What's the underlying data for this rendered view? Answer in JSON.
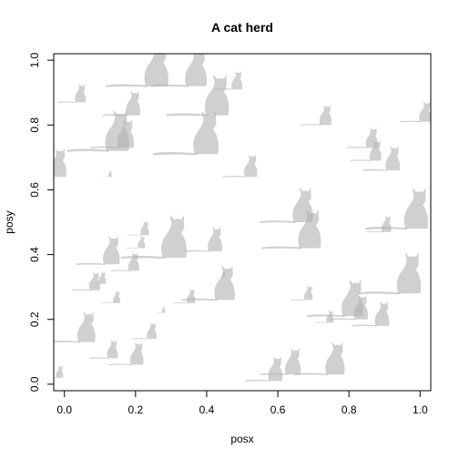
{
  "chart_data": {
    "type": "scatter",
    "title": "A cat herd",
    "xlabel": "posx",
    "ylabel": "posy",
    "xlim": [
      -0.03,
      1.03
    ],
    "ylim": [
      -0.02,
      1.02
    ],
    "xticks": [
      0.0,
      0.2,
      0.4,
      0.6,
      0.8,
      1.0
    ],
    "xtick_labels": [
      "0.0",
      "0.2",
      "0.4",
      "0.6",
      "0.8",
      "1.0"
    ],
    "yticks": [
      0.0,
      0.2,
      0.4,
      0.6,
      0.8,
      1.0
    ],
    "ytick_labels": [
      "0.0",
      "0.2",
      "0.4",
      "0.6",
      "0.8",
      "1.0"
    ],
    "grid": false,
    "marker": "cat-silhouette",
    "marker_color": "#b0b0b0",
    "marker_opacity": 0.6,
    "points": [
      {
        "x": 0.27,
        "y": 0.92,
        "size": 1.0
      },
      {
        "x": 0.38,
        "y": 0.92,
        "size": 0.9
      },
      {
        "x": 0.05,
        "y": 0.87,
        "size": 0.45
      },
      {
        "x": 0.2,
        "y": 0.83,
        "size": 0.6
      },
      {
        "x": 0.44,
        "y": 0.83,
        "size": 1.0
      },
      {
        "x": 0.49,
        "y": 0.91,
        "size": 0.45
      },
      {
        "x": 0.74,
        "y": 0.8,
        "size": 0.5
      },
      {
        "x": 1.02,
        "y": 0.81,
        "size": 0.5
      },
      {
        "x": 0.16,
        "y": 0.72,
        "size": 1.0
      },
      {
        "x": 0.41,
        "y": 0.71,
        "size": 1.05
      },
      {
        "x": 0.18,
        "y": 0.73,
        "size": 0.7
      },
      {
        "x": 0.87,
        "y": 0.73,
        "size": 0.5
      },
      {
        "x": 0.88,
        "y": 0.69,
        "size": 0.5
      },
      {
        "x": 0.93,
        "y": 0.66,
        "size": 0.6
      },
      {
        "x": -0.01,
        "y": 0.64,
        "size": 0.7
      },
      {
        "x": 0.53,
        "y": 0.64,
        "size": 0.55
      },
      {
        "x": 0.68,
        "y": 0.5,
        "size": 0.85
      },
      {
        "x": 0.7,
        "y": 0.42,
        "size": 0.95
      },
      {
        "x": 1.0,
        "y": 0.48,
        "size": 1.0
      },
      {
        "x": 0.91,
        "y": 0.47,
        "size": 0.4
      },
      {
        "x": 0.23,
        "y": 0.46,
        "size": 0.35
      },
      {
        "x": 0.22,
        "y": 0.42,
        "size": 0.3
      },
      {
        "x": 0.32,
        "y": 0.39,
        "size": 1.05
      },
      {
        "x": 0.43,
        "y": 0.41,
        "size": 0.6
      },
      {
        "x": 0.14,
        "y": 0.37,
        "size": 0.7
      },
      {
        "x": 0.2,
        "y": 0.35,
        "size": 0.45
      },
      {
        "x": 0.09,
        "y": 0.29,
        "size": 0.45
      },
      {
        "x": 0.11,
        "y": 0.31,
        "size": 0.3
      },
      {
        "x": 0.15,
        "y": 0.25,
        "size": 0.3
      },
      {
        "x": 0.36,
        "y": 0.25,
        "size": 0.35
      },
      {
        "x": 0.46,
        "y": 0.26,
        "size": 0.85
      },
      {
        "x": 0.69,
        "y": 0.26,
        "size": 0.35
      },
      {
        "x": 0.98,
        "y": 0.28,
        "size": 1.0
      },
      {
        "x": 0.82,
        "y": 0.21,
        "size": 0.9
      },
      {
        "x": 0.84,
        "y": 0.2,
        "size": 0.6
      },
      {
        "x": 0.9,
        "y": 0.18,
        "size": 0.6
      },
      {
        "x": 0.75,
        "y": 0.19,
        "size": 0.3
      },
      {
        "x": 0.07,
        "y": 0.13,
        "size": 0.75
      },
      {
        "x": 0.25,
        "y": 0.14,
        "size": 0.4
      },
      {
        "x": 0.14,
        "y": 0.08,
        "size": 0.45
      },
      {
        "x": 0.21,
        "y": 0.06,
        "size": 0.55
      },
      {
        "x": -0.01,
        "y": 0.02,
        "size": 0.3
      },
      {
        "x": 0.6,
        "y": 0.01,
        "size": 0.6
      },
      {
        "x": 0.65,
        "y": 0.03,
        "size": 0.65
      },
      {
        "x": 0.77,
        "y": 0.03,
        "size": 0.8
      },
      {
        "x": 0.13,
        "y": 0.64,
        "size": 0.15
      },
      {
        "x": 0.45,
        "y": 0.33,
        "size": 0.15
      },
      {
        "x": 0.28,
        "y": 0.22,
        "size": 0.15
      }
    ]
  }
}
